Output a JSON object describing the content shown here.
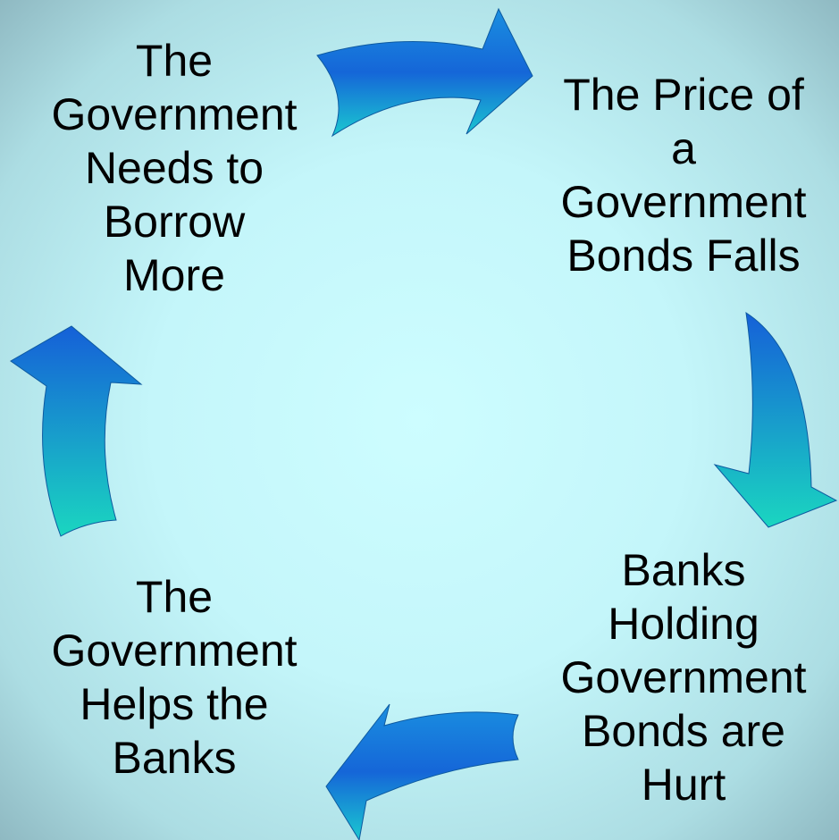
{
  "nodes": [
    {
      "lines": [
        "The",
        "Government",
        "Needs to",
        "Borrow",
        "More"
      ]
    },
    {
      "lines": [
        "The Price of",
        "a",
        "Government",
        "Bonds Falls"
      ]
    },
    {
      "lines": [
        "Banks",
        "Holding",
        "Government",
        "Bonds are",
        "Hurt"
      ]
    },
    {
      "lines": [
        "The",
        "Government",
        "Helps the",
        "Banks"
      ]
    }
  ]
}
